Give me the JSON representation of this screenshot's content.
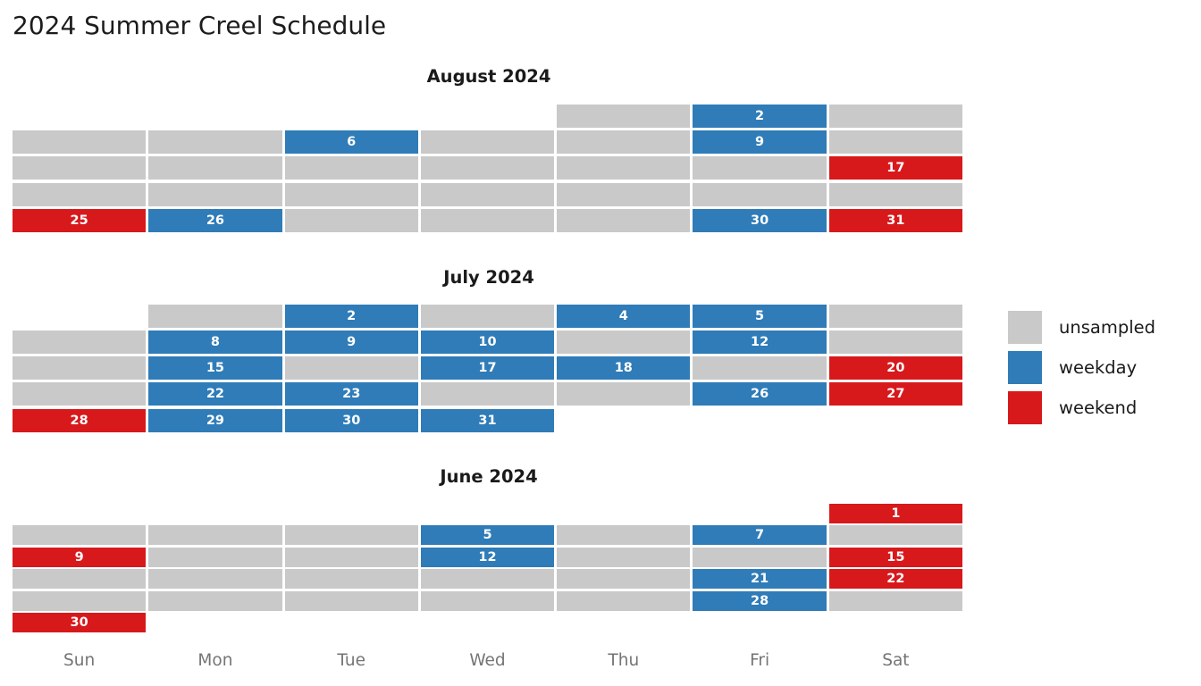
{
  "title": "2024 Summer Creel Schedule",
  "chart_data": {
    "type": "heatmap",
    "title": "2024 Summer Creel Schedule",
    "subtitle_months": [
      "August 2024",
      "July 2024",
      "June 2024"
    ],
    "weekday_labels": [
      "Sun",
      "Mon",
      "Tue",
      "Wed",
      "Thu",
      "Fri",
      "Sat"
    ],
    "legend_position": "right-middle",
    "legend": [
      {
        "label": "unsampled",
        "color": "#c9c9c9"
      },
      {
        "label": "weekday",
        "color": "#2f7cb8"
      },
      {
        "label": "weekend",
        "color": "#d7191c"
      }
    ],
    "colors": {
      "unsampled": "#c9c9c9",
      "weekday": "#2f7cb8",
      "weekend": "#d7191c",
      "cell_text": "#ffffff",
      "title_text": "#1c1c1c",
      "axis_text": "#757575"
    },
    "months": [
      {
        "name": "August 2024",
        "sampled_weekdays": [
          2,
          6,
          9,
          26,
          30
        ],
        "sampled_weekends": [
          17,
          25,
          31
        ],
        "weeks": [
          [
            null,
            null,
            null,
            null,
            "unsampled",
            {
              "day": 2,
              "type": "weekday"
            },
            "unsampled"
          ],
          [
            "unsampled",
            "unsampled",
            {
              "day": 6,
              "type": "weekday"
            },
            "unsampled",
            "unsampled",
            {
              "day": 9,
              "type": "weekday"
            },
            "unsampled"
          ],
          [
            "unsampled",
            "unsampled",
            "unsampled",
            "unsampled",
            "unsampled",
            "unsampled",
            {
              "day": 17,
              "type": "weekend"
            }
          ],
          [
            "unsampled",
            "unsampled",
            "unsampled",
            "unsampled",
            "unsampled",
            "unsampled",
            "unsampled"
          ],
          [
            {
              "day": 25,
              "type": "weekend"
            },
            {
              "day": 26,
              "type": "weekday"
            },
            "unsampled",
            "unsampled",
            "unsampled",
            {
              "day": 30,
              "type": "weekday"
            },
            {
              "day": 31,
              "type": "weekend"
            }
          ]
        ]
      },
      {
        "name": "July 2024",
        "sampled_weekdays": [
          2,
          4,
          5,
          8,
          9,
          10,
          12,
          15,
          17,
          18,
          22,
          23,
          26,
          29,
          30,
          31
        ],
        "sampled_weekends": [
          20,
          27,
          28
        ],
        "weeks": [
          [
            null,
            "unsampled",
            {
              "day": 2,
              "type": "weekday"
            },
            "unsampled",
            {
              "day": 4,
              "type": "weekday"
            },
            {
              "day": 5,
              "type": "weekday"
            },
            "unsampled"
          ],
          [
            "unsampled",
            {
              "day": 8,
              "type": "weekday"
            },
            {
              "day": 9,
              "type": "weekday"
            },
            {
              "day": 10,
              "type": "weekday"
            },
            "unsampled",
            {
              "day": 12,
              "type": "weekday"
            },
            "unsampled"
          ],
          [
            "unsampled",
            {
              "day": 15,
              "type": "weekday"
            },
            "unsampled",
            {
              "day": 17,
              "type": "weekday"
            },
            {
              "day": 18,
              "type": "weekday"
            },
            "unsampled",
            {
              "day": 20,
              "type": "weekend"
            }
          ],
          [
            "unsampled",
            {
              "day": 22,
              "type": "weekday"
            },
            {
              "day": 23,
              "type": "weekday"
            },
            "unsampled",
            "unsampled",
            {
              "day": 26,
              "type": "weekday"
            },
            {
              "day": 27,
              "type": "weekend"
            }
          ],
          [
            {
              "day": 28,
              "type": "weekend"
            },
            {
              "day": 29,
              "type": "weekday"
            },
            {
              "day": 30,
              "type": "weekday"
            },
            {
              "day": 31,
              "type": "weekday"
            },
            null,
            null,
            null
          ]
        ]
      },
      {
        "name": "June 2024",
        "sampled_weekdays": [
          5,
          7,
          12,
          21,
          28
        ],
        "sampled_weekends": [
          1,
          9,
          15,
          22,
          30
        ],
        "weeks": [
          [
            null,
            null,
            null,
            null,
            null,
            null,
            {
              "day": 1,
              "type": "weekend"
            }
          ],
          [
            "unsampled",
            "unsampled",
            "unsampled",
            {
              "day": 5,
              "type": "weekday"
            },
            "unsampled",
            {
              "day": 7,
              "type": "weekday"
            },
            "unsampled"
          ],
          [
            {
              "day": 9,
              "type": "weekend"
            },
            "unsampled",
            "unsampled",
            {
              "day": 12,
              "type": "weekday"
            },
            "unsampled",
            "unsampled",
            {
              "day": 15,
              "type": "weekend"
            }
          ],
          [
            "unsampled",
            "unsampled",
            "unsampled",
            "unsampled",
            "unsampled",
            {
              "day": 21,
              "type": "weekday"
            },
            {
              "day": 22,
              "type": "weekend"
            }
          ],
          [
            "unsampled",
            "unsampled",
            "unsampled",
            "unsampled",
            "unsampled",
            {
              "day": 28,
              "type": "weekday"
            },
            "unsampled"
          ],
          [
            {
              "day": 30,
              "type": "weekend"
            },
            null,
            null,
            null,
            null,
            null,
            null
          ]
        ]
      }
    ]
  }
}
